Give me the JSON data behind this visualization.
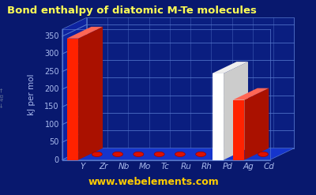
{
  "title": "Bond enthalpy of diatomic M-Te molecules",
  "ylabel": "kJ per mol",
  "website": "www.webelements.com",
  "elements": [
    "Y",
    "Zr",
    "Nb",
    "Mo",
    "Tc",
    "Ru",
    "Rh",
    "Pd",
    "Ag",
    "Cd"
  ],
  "values": [
    344,
    8,
    8,
    8,
    8,
    8,
    8,
    245,
    170,
    8
  ],
  "bar_colors": [
    "#ff2200",
    "#ff2200",
    "#ff2200",
    "#ff2200",
    "#ff2200",
    "#ff2200",
    "#ff2200",
    "#ffffff",
    "#ff2200",
    "#ff2200"
  ],
  "ylim_max": 370,
  "yticks": [
    0,
    50,
    100,
    150,
    200,
    250,
    300,
    350
  ],
  "background_color": "#08186e",
  "floor_color": "#1535cc",
  "floor_color2": "#1030bb",
  "backwall_color": "#0a1e80",
  "grid_color": "#5577cc",
  "title_color": "#ffff55",
  "axis_color": "#aabbee",
  "website_color": "#ffcc00",
  "title_fontsize": 9.5,
  "label_fontsize": 7.5,
  "tick_fontsize": 7,
  "website_fontsize": 9
}
